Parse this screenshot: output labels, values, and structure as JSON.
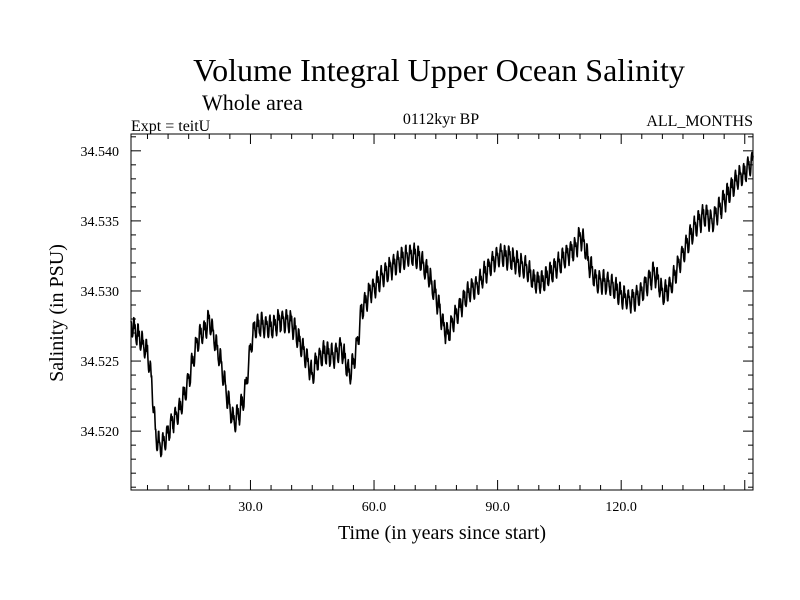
{
  "chart_data": {
    "type": "line",
    "title": "Volume Integral Upper Ocean Salinity",
    "subtitle": "Whole area",
    "experiment": "Expt = teitU",
    "period": "0112kyr BP",
    "months": "ALL_MONTHS",
    "xlabel": "Time (in years since start)",
    "ylabel": "Salinity (in PSU)",
    "xlim": [
      1,
      152
    ],
    "ylim": [
      34.5158,
      34.5412
    ],
    "x_ticks": [
      {
        "value": 30,
        "label": "30.0"
      },
      {
        "value": 60,
        "label": "60.0"
      },
      {
        "value": 90,
        "label": "90.0"
      },
      {
        "value": 120,
        "label": "120.0"
      }
    ],
    "y_ticks": [
      {
        "value": 34.52,
        "label": "34.520"
      },
      {
        "value": 34.525,
        "label": "34.525"
      },
      {
        "value": 34.53,
        "label": "34.530"
      },
      {
        "value": 34.535,
        "label": "34.535"
      },
      {
        "value": 34.54,
        "label": "34.540"
      }
    ],
    "annual_cycle_amplitude": 0.0009,
    "series": [
      {
        "name": "Salinity",
        "x": [
          1,
          3,
          5,
          6,
          7,
          8,
          9,
          10,
          11,
          13,
          15,
          17,
          19,
          20,
          21,
          23,
          24,
          25,
          26,
          27,
          28,
          29,
          30,
          31,
          33,
          35,
          37,
          40,
          42,
          44,
          45,
          46,
          48,
          50,
          52,
          53,
          54,
          55,
          56,
          57,
          59,
          61,
          63,
          65,
          67,
          69,
          71,
          73,
          75,
          76,
          77,
          78,
          79,
          81,
          83,
          85,
          87,
          89,
          91,
          93,
          95,
          97,
          99,
          101,
          103,
          105,
          107,
          109,
          110,
          111,
          112,
          114,
          116,
          118,
          120,
          122,
          124,
          126,
          128,
          129,
          130,
          132,
          134,
          136,
          138,
          140,
          141,
          142,
          144,
          146,
          148,
          150,
          152
        ],
        "values": [
          34.5275,
          34.5265,
          34.5255,
          34.5235,
          34.5195,
          34.5188,
          34.519,
          34.5198,
          34.5205,
          34.5215,
          34.5235,
          34.5262,
          34.5272,
          34.5278,
          34.5268,
          34.5245,
          34.5228,
          34.5215,
          34.5205,
          34.521,
          34.5218,
          34.5232,
          34.5258,
          34.5272,
          34.5275,
          34.5272,
          34.5278,
          34.5276,
          34.5262,
          34.5248,
          34.5238,
          34.5248,
          34.5255,
          34.5252,
          34.5258,
          34.525,
          34.5238,
          34.5248,
          34.5262,
          34.5285,
          34.5298,
          34.5305,
          34.5312,
          34.5318,
          34.5322,
          34.5325,
          34.5322,
          34.5312,
          34.5295,
          34.5285,
          34.5272,
          34.5268,
          34.5276,
          34.5288,
          34.5298,
          34.5302,
          34.5312,
          34.532,
          34.5325,
          34.5322,
          34.5318,
          34.5315,
          34.5305,
          34.5305,
          34.5312,
          34.5318,
          34.5325,
          34.533,
          34.5338,
          34.5333,
          34.532,
          34.5305,
          34.5305,
          34.5302,
          34.5296,
          34.5292,
          34.5294,
          34.5303,
          34.5312,
          34.5305,
          34.5296,
          34.5302,
          34.5318,
          34.5332,
          34.5345,
          34.5352,
          34.5352,
          34.5348,
          34.5358,
          34.5368,
          34.5378,
          34.5383,
          34.5392
        ]
      }
    ]
  }
}
